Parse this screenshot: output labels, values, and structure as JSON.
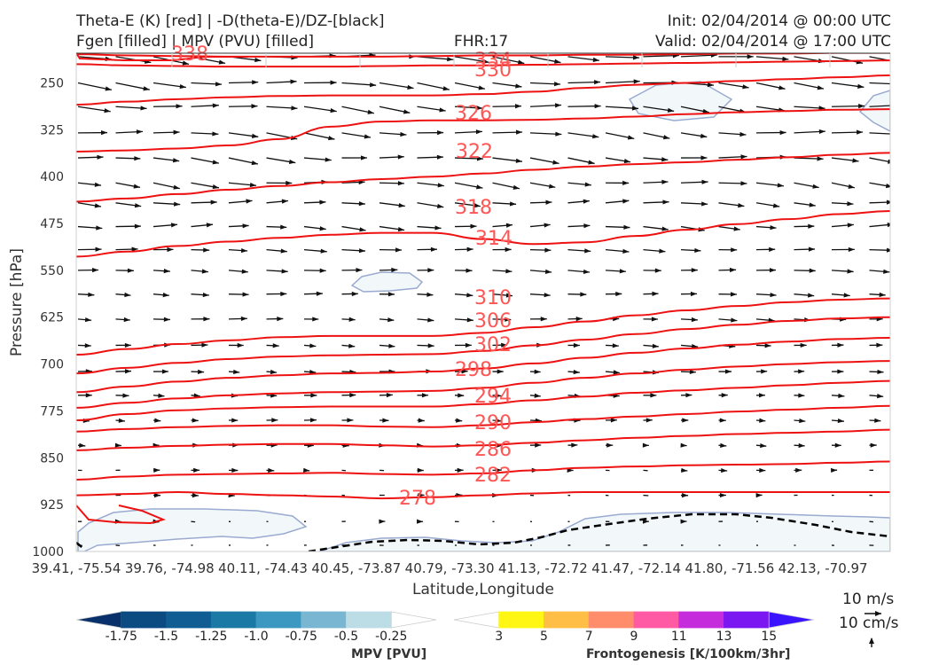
{
  "header": {
    "line1_left": "Theta-E (K) [red] | -D(theta-E)/DZ-[black]",
    "line2_left": "Fgen [filled] | MPV (PVU) [filled]",
    "fhr": "FHR:17",
    "init": "Init: 02/04/2014 @ 00:00 UTC",
    "valid": "Valid: 02/04/2014 @ 17:00 UTC"
  },
  "colors": {
    "theta_e": "#ee1111",
    "theta_e_label": "#ff5555",
    "wind": "#111111",
    "mpv_outline": "#9aaad0",
    "mpv_fill": "#f2f8fa"
  },
  "chart_data": {
    "type": "cross-section",
    "ylabel": "Pressure [hPa]",
    "xlabel": "Latitude,Longitude",
    "ylim": [
      1000,
      200
    ],
    "yticks": [
      250,
      325,
      400,
      475,
      550,
      625,
      700,
      775,
      850,
      925,
      1000
    ],
    "xticks": [
      "39.41, -75.54",
      "39.76, -74.98",
      "40.11, -74.43",
      "40.45, -73.87",
      "40.79, -73.30",
      "41.13, -72.72",
      "41.47, -72.14",
      "41.80, -71.56",
      "42.13, -70.97"
    ],
    "theta_e_contours": [
      {
        "level": 278,
        "p": [
          910,
          908,
          905,
          908,
          910,
          912,
          915,
          913,
          910,
          907,
          905,
          905,
          905,
          905,
          905,
          905,
          905
        ]
      },
      {
        "level": 282,
        "p": [
          885,
          880,
          877,
          876,
          875,
          874,
          876,
          877,
          875,
          870,
          866,
          864,
          862,
          861,
          860,
          858,
          856
        ]
      },
      {
        "level": 286,
        "p": [
          838,
          834,
          831,
          829,
          828,
          828,
          830,
          832,
          830,
          826,
          822,
          818,
          815,
          812,
          810,
          808,
          805
        ]
      },
      {
        "level": 290,
        "p": [
          808,
          804,
          801,
          799,
          798,
          798,
          800,
          801,
          798,
          793,
          788,
          784,
          780,
          776,
          773,
          770,
          767
        ]
      },
      {
        "level": 294,
        "p": [
          790,
          780,
          774,
          771,
          769,
          768,
          768,
          768,
          764,
          758,
          752,
          746,
          742,
          738,
          734,
          730,
          727
        ]
      },
      {
        "level": 298,
        "p": [
          770,
          762,
          755,
          750,
          747,
          745,
          744,
          743,
          738,
          730,
          722,
          715,
          709,
          704,
          700,
          697,
          695
        ]
      },
      {
        "level": 302,
        "p": [
          745,
          736,
          728,
          722,
          718,
          715,
          714,
          712,
          707,
          699,
          690,
          682,
          675,
          669,
          664,
          660,
          658
        ]
      },
      {
        "level": 306,
        "p": [
          715,
          706,
          698,
          692,
          688,
          686,
          685,
          684,
          679,
          670,
          661,
          652,
          644,
          637,
          631,
          627,
          625
        ]
      },
      {
        "level": 310,
        "p": [
          685,
          676,
          668,
          662,
          657,
          655,
          655,
          655,
          650,
          641,
          632,
          622,
          614,
          607,
          601,
          597,
          595
        ]
      },
      {
        "level": 314,
        "p": [
          528,
          520,
          511,
          504,
          498,
          493,
          490,
          490,
          500,
          508,
          505,
          495,
          485,
          476,
          468,
          460,
          455
        ]
      },
      {
        "level": 318,
        "p": [
          440,
          435,
          428,
          421,
          415,
          409,
          404,
          400,
          395,
          389,
          384,
          380,
          377,
          373,
          369,
          365,
          362
        ]
      },
      {
        "level": 322,
        "p": [
          360,
          358,
          355,
          350,
          340,
          320,
          312,
          310,
          310,
          309,
          307,
          304,
          300,
          297,
          295,
          293,
          292
        ]
      },
      {
        "level": 326,
        "p": [
          285,
          280,
          276,
          273,
          271,
          270,
          270,
          270,
          268,
          264,
          258,
          253,
          250,
          247,
          244,
          241,
          238
        ]
      },
      {
        "level": 330,
        "p": [
          220,
          222,
          223,
          224,
          224,
          224,
          223,
          222,
          222,
          221,
          220,
          219,
          218,
          217,
          216,
          215,
          214
        ]
      },
      {
        "level": 334,
        "p": [
          204,
          206,
          207,
          208,
          208,
          208,
          208,
          207,
          206,
          206,
          205,
          205,
          204,
          203,
          203,
          202,
          202
        ]
      }
    ],
    "theta_e_labels": [
      "338",
      "334",
      "330",
      "326",
      "322",
      "318",
      "314",
      "310",
      "306",
      "302",
      "298",
      "294",
      "290",
      "286",
      "282",
      "278"
    ],
    "colorbar_mpv": {
      "label": "MPV [PVU]",
      "ticks": [
        "-1.75",
        "-1.5",
        "-1.25",
        "-1.0",
        "-0.75",
        "-0.5",
        "-0.25"
      ],
      "colors": [
        "#08306b",
        "#0c4a82",
        "#105d94",
        "#1b7aa5",
        "#3c98c0",
        "#78b6d1",
        "#bcdce6",
        "#ffffff"
      ]
    },
    "colorbar_fgen": {
      "label": "Frontogenesis [K/100km/3hr]",
      "ticks": [
        "3",
        "5",
        "7",
        "9",
        "11",
        "13",
        "15"
      ],
      "colors": [
        "#ffffff",
        "#fff713",
        "#ffbe45",
        "#ff8c6b",
        "#ff5aa3",
        "#c52ddc",
        "#7b17f0",
        "#3a13ff"
      ]
    },
    "wind_reference": {
      "u": "10 m/s",
      "w": "10 cm/s"
    }
  }
}
